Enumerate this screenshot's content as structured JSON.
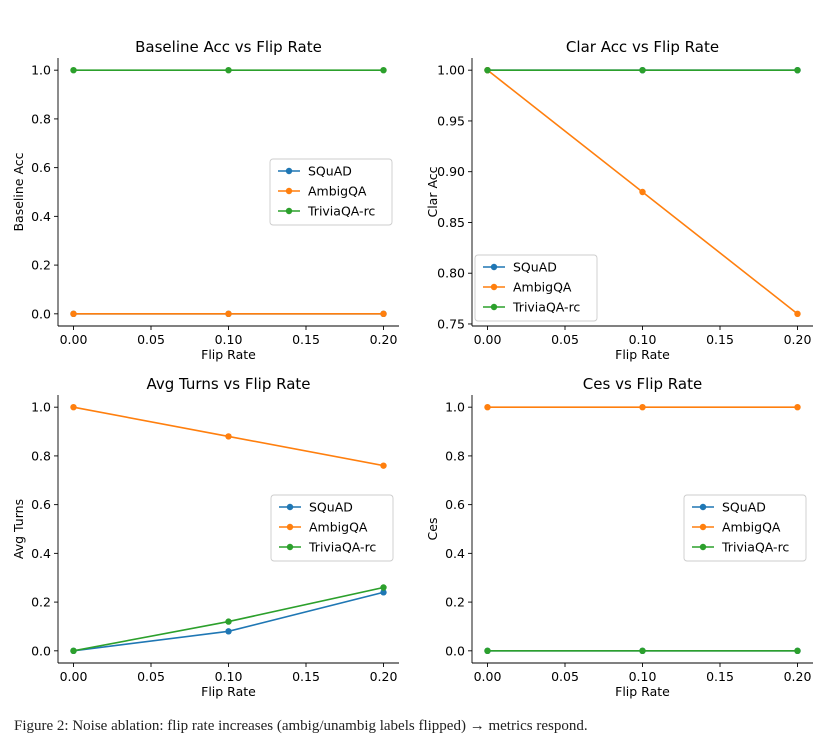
{
  "figure": {
    "caption": "Figure 2: Noise ablation: flip rate increases (ambig/unambig labels flipped) → metrics respond."
  },
  "chart_data": [
    {
      "type": "line",
      "title": "Baseline Acc vs Flip Rate",
      "xlabel": "Flip Rate",
      "ylabel": "Baseline Acc",
      "x": [
        0.0,
        0.1,
        0.2
      ],
      "xlim": [
        -0.01,
        0.21
      ],
      "ylim": [
        -0.05,
        1.05
      ],
      "xticks": [
        0.0,
        0.05,
        0.1,
        0.15,
        0.2
      ],
      "xtick_labels": [
        "0.00",
        "0.05",
        "0.10",
        "0.15",
        "0.20"
      ],
      "yticks": [
        0.0,
        0.2,
        0.4,
        0.6,
        0.8,
        1.0
      ],
      "ytick_labels": [
        "0.0",
        "0.2",
        "0.4",
        "0.6",
        "0.8",
        "1.0"
      ],
      "legend_position": "center-right",
      "series": [
        {
          "name": "SQuAD",
          "color": "#1f77b4",
          "values": [
            0.0,
            0.0,
            0.0
          ]
        },
        {
          "name": "AmbigQA",
          "color": "#ff7f0e",
          "values": [
            0.0,
            0.0,
            0.0
          ]
        },
        {
          "name": "TriviaQA-rc",
          "color": "#2ca02c",
          "values": [
            1.0,
            1.0,
            1.0
          ]
        }
      ]
    },
    {
      "type": "line",
      "title": "Clar Acc vs Flip Rate",
      "xlabel": "Flip Rate",
      "ylabel": "Clar Acc",
      "x": [
        0.0,
        0.1,
        0.2
      ],
      "xlim": [
        -0.01,
        0.21
      ],
      "ylim": [
        0.748,
        1.012
      ],
      "xticks": [
        0.0,
        0.05,
        0.1,
        0.15,
        0.2
      ],
      "xtick_labels": [
        "0.00",
        "0.05",
        "0.10",
        "0.15",
        "0.20"
      ],
      "yticks": [
        0.75,
        0.8,
        0.85,
        0.9,
        0.95,
        1.0
      ],
      "ytick_labels": [
        "0.75",
        "0.80",
        "0.85",
        "0.90",
        "0.95",
        "1.00"
      ],
      "legend_position": "lower-left",
      "series": [
        {
          "name": "SQuAD",
          "color": "#1f77b4",
          "values": [
            1.0,
            1.0,
            1.0
          ]
        },
        {
          "name": "AmbigQA",
          "color": "#ff7f0e",
          "values": [
            1.0,
            0.88,
            0.76
          ]
        },
        {
          "name": "TriviaQA-rc",
          "color": "#2ca02c",
          "values": [
            1.0,
            1.0,
            1.0
          ]
        }
      ]
    },
    {
      "type": "line",
      "title": "Avg Turns vs Flip Rate",
      "xlabel": "Flip Rate",
      "ylabel": "Avg Turns",
      "x": [
        0.0,
        0.1,
        0.2
      ],
      "xlim": [
        -0.01,
        0.21
      ],
      "ylim": [
        -0.05,
        1.05
      ],
      "xticks": [
        0.0,
        0.05,
        0.1,
        0.15,
        0.2
      ],
      "xtick_labels": [
        "0.00",
        "0.05",
        "0.10",
        "0.15",
        "0.20"
      ],
      "yticks": [
        0.0,
        0.2,
        0.4,
        0.6,
        0.8,
        1.0
      ],
      "ytick_labels": [
        "0.0",
        "0.2",
        "0.4",
        "0.6",
        "0.8",
        "1.0"
      ],
      "legend_position": "center-right",
      "series": [
        {
          "name": "SQuAD",
          "color": "#1f77b4",
          "values": [
            0.0,
            0.08,
            0.24
          ]
        },
        {
          "name": "AmbigQA",
          "color": "#ff7f0e",
          "values": [
            1.0,
            0.88,
            0.76
          ]
        },
        {
          "name": "TriviaQA-rc",
          "color": "#2ca02c",
          "values": [
            0.0,
            0.12,
            0.26
          ]
        }
      ]
    },
    {
      "type": "line",
      "title": "Ces vs Flip Rate",
      "xlabel": "Flip Rate",
      "ylabel": "Ces",
      "x": [
        0.0,
        0.1,
        0.2
      ],
      "xlim": [
        -0.01,
        0.21
      ],
      "ylim": [
        -0.05,
        1.05
      ],
      "xticks": [
        0.0,
        0.05,
        0.1,
        0.15,
        0.2
      ],
      "xtick_labels": [
        "0.00",
        "0.05",
        "0.10",
        "0.15",
        "0.20"
      ],
      "yticks": [
        0.0,
        0.2,
        0.4,
        0.6,
        0.8,
        1.0
      ],
      "ytick_labels": [
        "0.0",
        "0.2",
        "0.4",
        "0.6",
        "0.8",
        "1.0"
      ],
      "legend_position": "center-right",
      "series": [
        {
          "name": "SQuAD",
          "color": "#1f77b4",
          "values": [
            0.0,
            0.0,
            0.0
          ]
        },
        {
          "name": "AmbigQA",
          "color": "#ff7f0e",
          "values": [
            1.0,
            1.0,
            1.0
          ]
        },
        {
          "name": "TriviaQA-rc",
          "color": "#2ca02c",
          "values": [
            0.0,
            0.0,
            0.0
          ]
        }
      ]
    }
  ]
}
